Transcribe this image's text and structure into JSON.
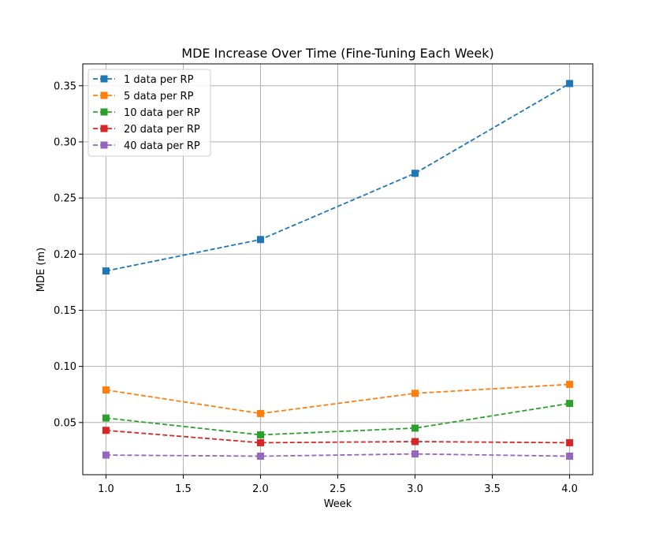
{
  "chart_data": {
    "type": "line",
    "title": "MDE Increase Over Time (Fine-Tuning Each Week)",
    "xlabel": "Week",
    "ylabel": "MDE (m)",
    "x": [
      1.0,
      2.0,
      3.0,
      4.0
    ],
    "xlim": [
      0.85,
      4.15
    ],
    "ylim": [
      0.0035,
      0.3695
    ],
    "xticks": [
      1.0,
      1.5,
      2.0,
      2.5,
      3.0,
      3.5,
      4.0
    ],
    "xtick_labels": [
      "1.0",
      "1.5",
      "2.0",
      "2.5",
      "3.0",
      "3.5",
      "4.0"
    ],
    "yticks": [
      0.05,
      0.1,
      0.15,
      0.2,
      0.25,
      0.3,
      0.35
    ],
    "ytick_labels": [
      "0.05",
      "0.10",
      "0.15",
      "0.20",
      "0.25",
      "0.30",
      "0.35"
    ],
    "grid": true,
    "legend_position": "top-left",
    "line_style": "dashed",
    "marker": "square",
    "series": [
      {
        "name": "1 data per RP",
        "color": "#1f77b4",
        "values": [
          0.185,
          0.213,
          0.272,
          0.352
        ]
      },
      {
        "name": "5 data per RP",
        "color": "#ff7f0e",
        "values": [
          0.079,
          0.058,
          0.076,
          0.084
        ]
      },
      {
        "name": "10 data per RP",
        "color": "#2ca02c",
        "values": [
          0.054,
          0.039,
          0.045,
          0.067
        ]
      },
      {
        "name": "20 data per RP",
        "color": "#d62728",
        "values": [
          0.043,
          0.032,
          0.033,
          0.032
        ]
      },
      {
        "name": "40 data per RP",
        "color": "#9467bd",
        "values": [
          0.021,
          0.02,
          0.022,
          0.02
        ]
      }
    ]
  }
}
